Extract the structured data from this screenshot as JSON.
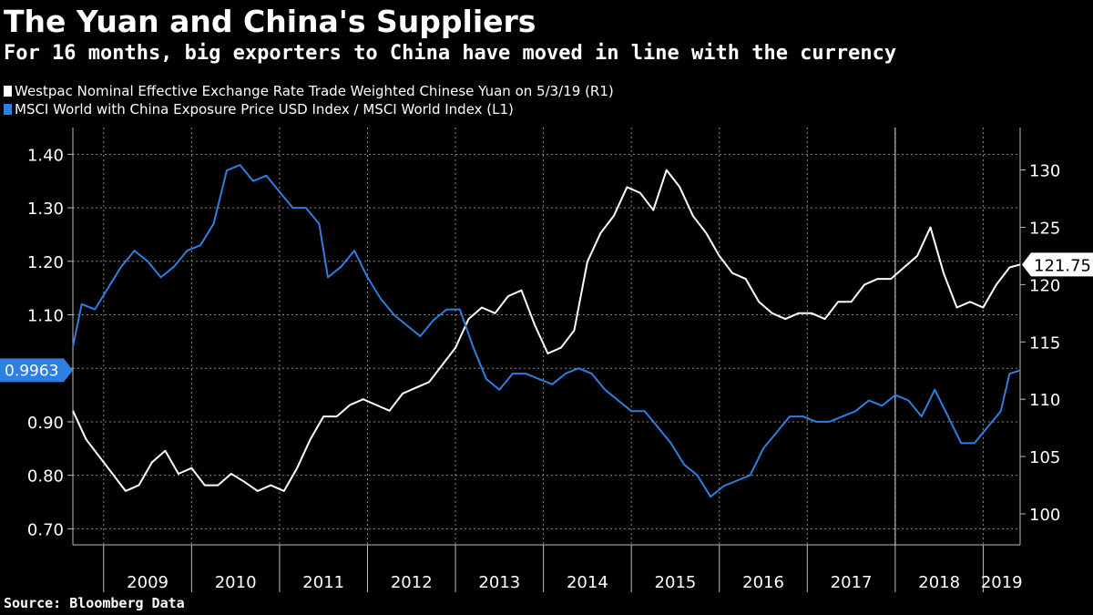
{
  "chart_data": {
    "type": "line",
    "title": "The Yuan and China's Suppliers",
    "subtitle": "For 16 months, big exporters to China have moved in line with the currency",
    "source": "Source: Bloomberg Data",
    "x_tick_labels": [
      "2009",
      "2010",
      "2011",
      "2012",
      "2013",
      "2014",
      "2015",
      "2016",
      "2017",
      "2018",
      "2019"
    ],
    "xlim": [
      2008.65,
      2019.42
    ],
    "marker_date": 2018.0,
    "left_axis": {
      "ticks": [
        0.7,
        0.8,
        0.9,
        1.0,
        1.1,
        1.2,
        1.3,
        1.4
      ],
      "tick_labels": [
        "0.70",
        "0.80",
        "0.90",
        "",
        "1.10",
        "1.20",
        "1.30",
        "1.40"
      ],
      "ylim": [
        0.67,
        1.45
      ],
      "last_value_label": "0.9963"
    },
    "right_axis": {
      "ticks": [
        100,
        105,
        110,
        115,
        120,
        125,
        130
      ],
      "tick_labels": [
        "100",
        "105",
        "110",
        "115",
        "120",
        "125",
        "130"
      ],
      "ylim": [
        97.3,
        133.7
      ],
      "last_value_label": "121.75"
    },
    "colors": {
      "series1": "#ffffff",
      "series2": "#2e7fe0",
      "grid": "#888888",
      "axis": "#bbbbbb"
    },
    "series": [
      {
        "name": "Westpac Nominal Effective Exchange Rate Trade Weighted Chinese Yuan  on 5/3/19 (R1)",
        "axis": "right",
        "color": "#ffffff",
        "x": [
          2008.65,
          2008.8,
          2008.95,
          2009.1,
          2009.25,
          2009.4,
          2009.55,
          2009.7,
          2009.85,
          2010.0,
          2010.15,
          2010.3,
          2010.45,
          2010.6,
          2010.75,
          2010.9,
          2011.05,
          2011.2,
          2011.35,
          2011.5,
          2011.65,
          2011.8,
          2011.95,
          2012.1,
          2012.25,
          2012.4,
          2012.55,
          2012.7,
          2012.85,
          2013.0,
          2013.15,
          2013.3,
          2013.45,
          2013.6,
          2013.75,
          2013.9,
          2014.05,
          2014.2,
          2014.35,
          2014.5,
          2014.65,
          2014.8,
          2014.95,
          2015.1,
          2015.25,
          2015.4,
          2015.55,
          2015.7,
          2015.85,
          2016.0,
          2016.15,
          2016.3,
          2016.45,
          2016.6,
          2016.75,
          2016.9,
          2017.05,
          2017.2,
          2017.35,
          2017.5,
          2017.65,
          2017.8,
          2017.95,
          2018.1,
          2018.25,
          2018.4,
          2018.55,
          2018.7,
          2018.85,
          2019.0,
          2019.15,
          2019.3,
          2019.42
        ],
        "values": [
          109,
          106.5,
          105,
          103.5,
          102,
          102.5,
          104.5,
          105.5,
          103.5,
          104,
          102.5,
          102.5,
          103.5,
          102.8,
          102,
          102.5,
          102,
          104,
          106.5,
          108.5,
          108.5,
          109.5,
          110,
          109.5,
          109,
          110.5,
          111,
          111.5,
          113,
          114.5,
          117,
          118,
          117.5,
          119,
          119.5,
          116.5,
          114,
          114.5,
          116,
          122,
          124.5,
          126,
          128.5,
          128,
          126.5,
          130,
          128.5,
          126,
          124.5,
          122.5,
          121,
          120.5,
          118.5,
          117.5,
          117,
          117.5,
          117.5,
          117,
          118.5,
          118.5,
          120,
          120.5,
          120.5,
          121.5,
          122.5,
          125,
          121,
          118,
          118.5,
          118,
          120,
          121.5,
          121.75
        ]
      },
      {
        "name": "MSCI World with China Exposure Price USD Index / MSCI World Index (L1)",
        "axis": "left",
        "color": "#2e7fe0",
        "x": [
          2008.65,
          2008.75,
          2008.9,
          2009.05,
          2009.2,
          2009.35,
          2009.5,
          2009.65,
          2009.8,
          2009.95,
          2010.1,
          2010.25,
          2010.4,
          2010.55,
          2010.7,
          2010.85,
          2011.0,
          2011.15,
          2011.3,
          2011.45,
          2011.55,
          2011.7,
          2011.85,
          2012.0,
          2012.15,
          2012.3,
          2012.45,
          2012.6,
          2012.75,
          2012.9,
          2013.05,
          2013.2,
          2013.35,
          2013.5,
          2013.65,
          2013.8,
          2013.95,
          2014.1,
          2014.25,
          2014.4,
          2014.55,
          2014.7,
          2014.85,
          2015.0,
          2015.15,
          2015.3,
          2015.45,
          2015.6,
          2015.75,
          2015.9,
          2016.05,
          2016.2,
          2016.35,
          2016.5,
          2016.65,
          2016.8,
          2016.95,
          2017.1,
          2017.25,
          2017.4,
          2017.55,
          2017.7,
          2017.85,
          2018.0,
          2018.15,
          2018.3,
          2018.45,
          2018.6,
          2018.75,
          2018.9,
          2019.05,
          2019.2,
          2019.3,
          2019.42
        ],
        "values": [
          1.04,
          1.12,
          1.11,
          1.15,
          1.19,
          1.22,
          1.2,
          1.17,
          1.19,
          1.22,
          1.23,
          1.27,
          1.37,
          1.38,
          1.35,
          1.36,
          1.33,
          1.3,
          1.3,
          1.27,
          1.17,
          1.19,
          1.22,
          1.17,
          1.13,
          1.1,
          1.08,
          1.06,
          1.09,
          1.11,
          1.11,
          1.04,
          0.98,
          0.96,
          0.99,
          0.99,
          0.98,
          0.97,
          0.99,
          1.0,
          0.99,
          0.96,
          0.94,
          0.92,
          0.92,
          0.89,
          0.86,
          0.82,
          0.8,
          0.76,
          0.78,
          0.79,
          0.8,
          0.85,
          0.88,
          0.91,
          0.91,
          0.9,
          0.9,
          0.91,
          0.92,
          0.94,
          0.93,
          0.95,
          0.94,
          0.91,
          0.96,
          0.91,
          0.86,
          0.86,
          0.89,
          0.92,
          0.99,
          0.9963
        ]
      }
    ]
  }
}
